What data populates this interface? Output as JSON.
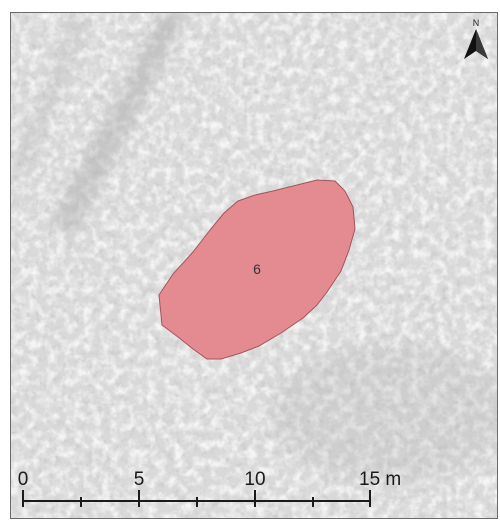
{
  "map": {
    "feature": {
      "label": "6",
      "fill_color": "#e48a91",
      "stroke_color": "#a0565c"
    },
    "north_arrow": {
      "letter": "N",
      "icon": "north-arrow-icon"
    },
    "scale_bar": {
      "tick_labels": [
        "0",
        "5",
        "10",
        "15 m"
      ],
      "max_distance_m": 15
    },
    "basemap": {
      "type": "grayscale aerial imagery",
      "base_color": "#d9d9d9"
    }
  }
}
